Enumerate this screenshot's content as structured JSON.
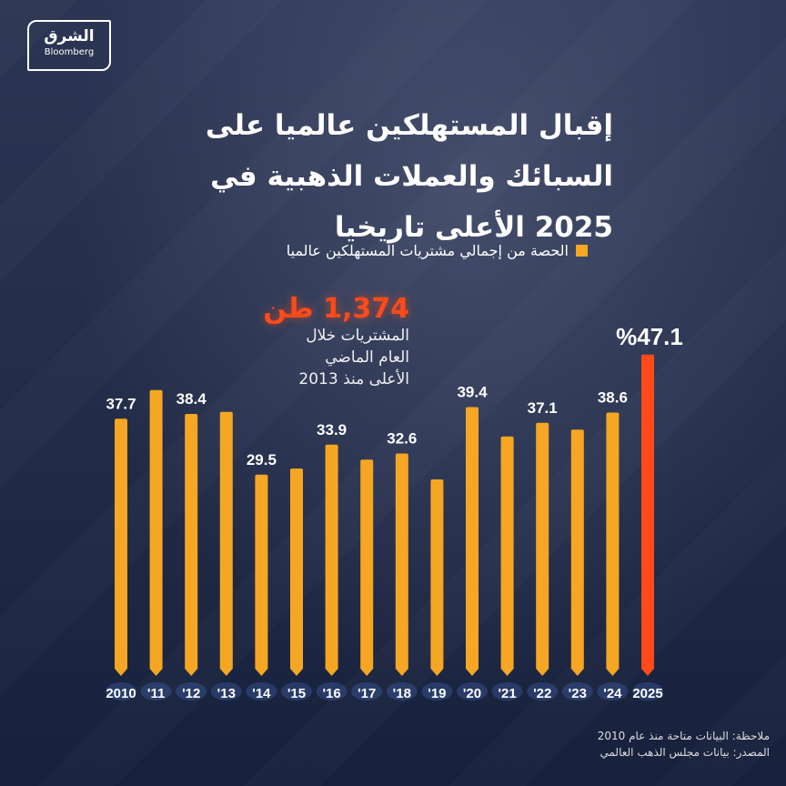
{
  "logo": {
    "arabic": "الشرق",
    "english": "Bloomberg"
  },
  "title_lines": [
    "إقبال المستهلكين عالميا على",
    "السبائك والعملات الذهبية في",
    "2025 الأعلى تاريخيا"
  ],
  "legend": "الحصة من إجمالي مشتريات المستهلكين عالميا",
  "annotation": {
    "value": "1,374 طن",
    "lines": [
      "المشتريات خلال",
      "العام الماضي",
      "الأعلى منذ 2013"
    ]
  },
  "notes": {
    "note": "ملاحظة: البيانات متاحة منذ عام 2010",
    "source": "المصدر: بيانات مجلس الذهب العالمي"
  },
  "colors": {
    "bar": "#f5a623",
    "highlight": "#ff4a1a"
  },
  "chart_data": {
    "type": "bar",
    "categories": [
      "2010",
      "'11",
      "'12",
      "'13",
      "'14",
      "'15",
      "'16",
      "'17",
      "'18",
      "'19",
      "'20",
      "'21",
      "'22",
      "'23",
      "'24",
      "2025"
    ],
    "values": [
      37.7,
      41.9,
      38.4,
      38.7,
      29.5,
      30.4,
      33.9,
      31.7,
      32.6,
      28.8,
      39.4,
      35.1,
      37.1,
      36.1,
      38.6,
      47.1
    ],
    "data_labels": [
      "37.7",
      null,
      "38.4",
      null,
      "29.5",
      null,
      "33.9",
      null,
      "32.6",
      null,
      "39.4",
      null,
      "37.1",
      null,
      "38.6",
      "%47.1"
    ],
    "series_name": "الحصة من إجمالي مشتريات المستهلكين عالميا",
    "highlight_index": 15,
    "ylim": [
      0,
      50
    ],
    "grid": false
  }
}
